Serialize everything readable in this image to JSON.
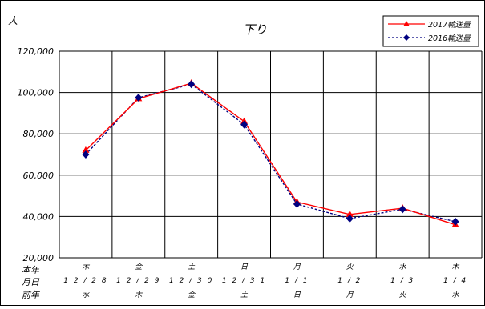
{
  "chart_data": {
    "type": "line",
    "title": "下り",
    "ylabel": "人",
    "ylim": [
      20000,
      120000
    ],
    "yticks": [
      "20,000",
      "40,000",
      "60,000",
      "80,000",
      "100,000",
      "120,000"
    ],
    "grid": true,
    "legend": "top-right",
    "row_labels": [
      "本年",
      "月日",
      "前年"
    ],
    "categories": [
      {
        "day_this_year": "木",
        "date": "12/28",
        "day_last_year": "水"
      },
      {
        "day_this_year": "金",
        "date": "12/29",
        "day_last_year": "木"
      },
      {
        "day_this_year": "土",
        "date": "12/30",
        "day_last_year": "金"
      },
      {
        "day_this_year": "日",
        "date": "12/31",
        "day_last_year": "土"
      },
      {
        "day_this_year": "月",
        "date": "1/1",
        "day_last_year": "日"
      },
      {
        "day_this_year": "火",
        "date": "1/2",
        "day_last_year": "月"
      },
      {
        "day_this_year": "水",
        "date": "1/3",
        "day_last_year": "火"
      },
      {
        "day_this_year": "木",
        "date": "1/4",
        "day_last_year": "水"
      }
    ],
    "series": [
      {
        "name": "2017輸送量",
        "color": "#ff0000",
        "dash": false,
        "marker": "triangle",
        "values": [
          72000,
          97000,
          104500,
          86000,
          47000,
          41000,
          44000,
          36000
        ]
      },
      {
        "name": "2016輸送量",
        "color": "#000080",
        "dash": true,
        "marker": "diamond",
        "values": [
          70000,
          97500,
          104000,
          84500,
          46000,
          39000,
          43500,
          37500
        ]
      }
    ]
  }
}
